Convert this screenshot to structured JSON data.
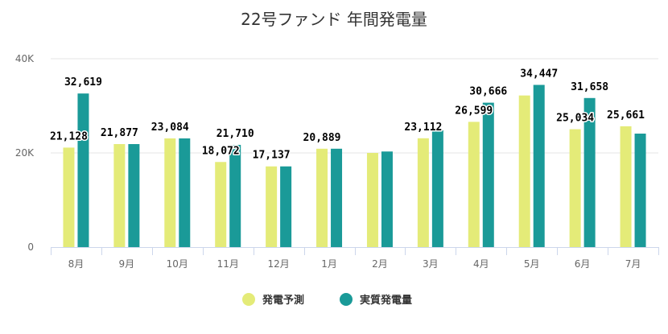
{
  "chart_data": {
    "type": "bar",
    "title": "22号ファンド 年間発電量",
    "categories": [
      "8月",
      "9月",
      "10月",
      "11月",
      "12月",
      "1月",
      "2月",
      "3月",
      "4月",
      "5月",
      "6月",
      "7月"
    ],
    "series": [
      {
        "name": "発電予測",
        "color": "#e4eb78",
        "values": [
          21128,
          21877,
          23084,
          18072,
          17137,
          20889,
          20000,
          23112,
          26599,
          32200,
          25034,
          25661
        ],
        "labels": [
          "21,128",
          "21,877",
          "23,084",
          "18,072",
          "17,137",
          "20,889",
          "",
          "23,112",
          "26,599",
          "",
          "25,034",
          "25,661"
        ]
      },
      {
        "name": "実質発電量",
        "color": "#1a9a98",
        "values": [
          32619,
          21877,
          23084,
          21710,
          17137,
          20889,
          20300,
          24800,
          30666,
          34447,
          31658,
          24100
        ],
        "labels": [
          "32,619",
          "",
          "",
          "21,710",
          "",
          "",
          "",
          "",
          "30,666",
          "34,447",
          "31,658",
          ""
        ]
      }
    ],
    "ylim": [
      0,
      40000
    ],
    "yticks": [
      {
        "value": 0,
        "label": "0"
      },
      {
        "value": 20000,
        "label": "20K"
      },
      {
        "value": 40000,
        "label": "40K"
      }
    ],
    "grid": true,
    "legend_position": "bottom-center",
    "xlabel": "",
    "ylabel": ""
  }
}
